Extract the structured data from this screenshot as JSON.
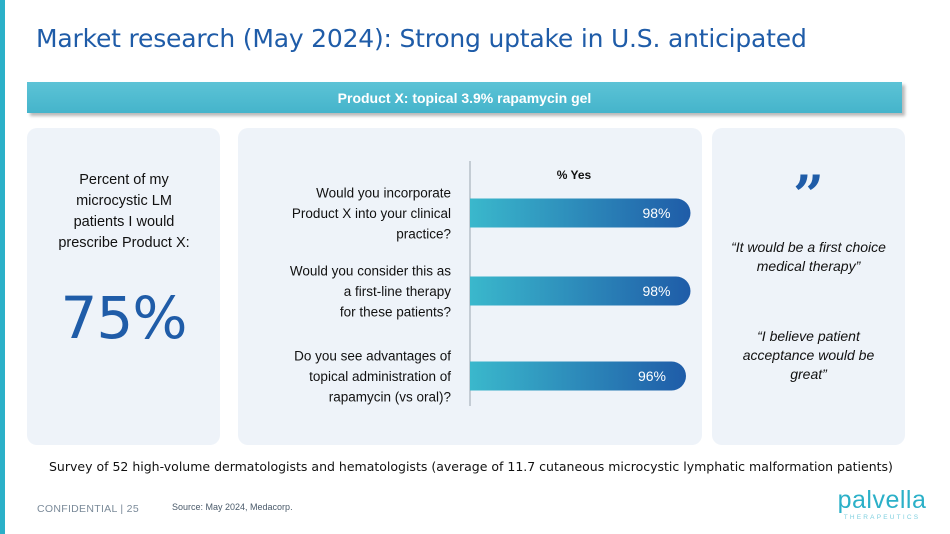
{
  "slide": {
    "title": "Market research (May 2024): Strong uptake in U.S. anticipated",
    "banner": "Product X: topical 3.9% rapamycin gel"
  },
  "left_panel": {
    "question": "Percent of my microcystic LM patients I would prescribe Product X:",
    "value": "75%"
  },
  "chart_data": {
    "type": "bar",
    "orientation": "horizontal",
    "title": "% Yes",
    "categories": [
      [
        "Would you incorporate",
        "Product X into your clinical",
        "practice?"
      ],
      [
        "Would you consider this as",
        "a first-line therapy",
        "for these patients?"
      ],
      [
        "Do you see advantages of",
        "topical administration of",
        "rapamycin (vs oral)?"
      ]
    ],
    "values": [
      98,
      98,
      96
    ],
    "data_labels": [
      "98%",
      "98%",
      "96%"
    ],
    "xlim": [
      0,
      100
    ],
    "grid": false,
    "bar_color": "#1f5ca8",
    "bar_color_start": "#3ab8cc"
  },
  "right_panel": {
    "quote_mark": "”",
    "quotes": [
      "“It would be a first choice medical therapy”",
      "“I believe patient acceptance would be great”"
    ]
  },
  "footer": {
    "survey_note": "Survey of 52 high-volume dermatologists and hematologists (average of 11.7 cutaneous microcystic lymphatic malformation patients)",
    "confidential": "CONFIDENTIAL | 25",
    "source": "Source: May 2024,  Medacorp.",
    "logo_name": "palvella",
    "logo_sub": "THERAPEUTICS"
  }
}
